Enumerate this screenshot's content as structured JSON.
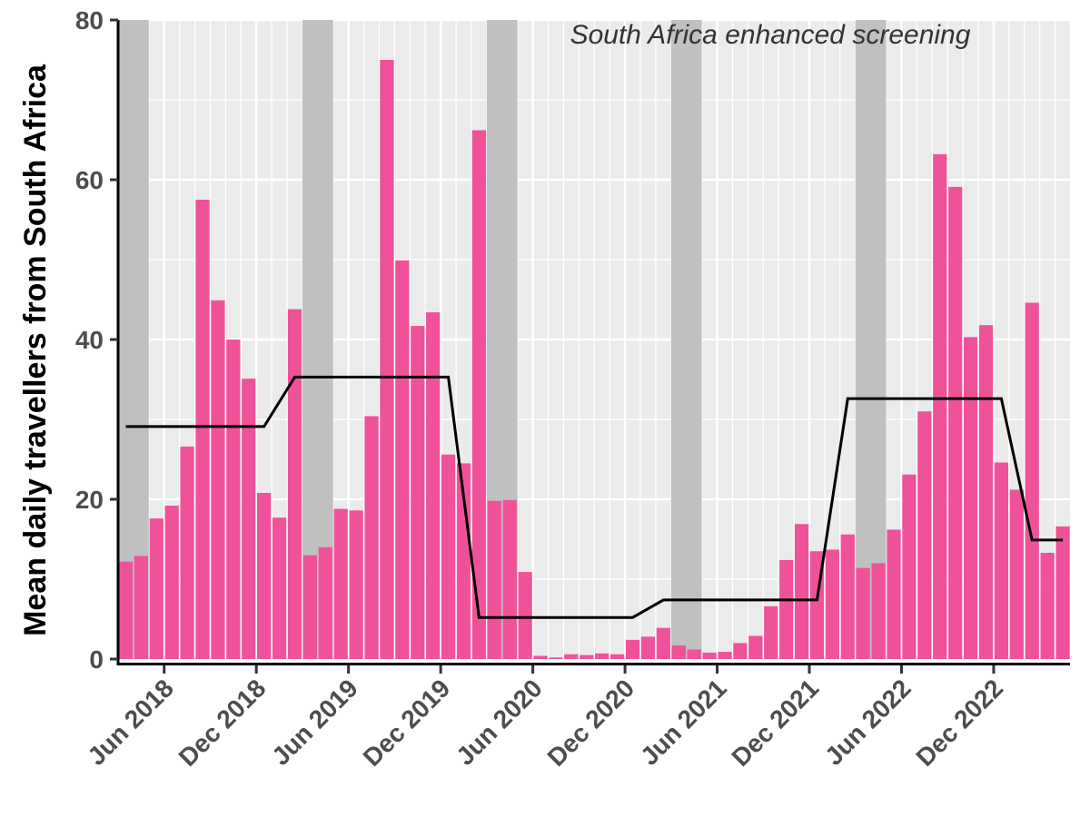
{
  "chart_data": {
    "type": "bar",
    "ylabel": "Mean daily travellers from South Africa",
    "xlabel": "",
    "annotation": "South Africa enhanced screening",
    "ylim": [
      0,
      80
    ],
    "yticks": [
      0,
      20,
      40,
      60,
      80
    ],
    "x_start": "Mar 2018",
    "x_end": "Apr 2023",
    "xticks": [
      "Jun 2018",
      "Dec 2018",
      "Jun 2019",
      "Dec 2019",
      "Jun 2020",
      "Dec 2020",
      "Jun 2021",
      "Dec 2021",
      "Jun 2022",
      "Dec 2022"
    ],
    "categories": [
      "Mar 2018",
      "Apr 2018",
      "May 2018",
      "Jun 2018",
      "Jul 2018",
      "Aug 2018",
      "Sep 2018",
      "Oct 2018",
      "Nov 2018",
      "Dec 2018",
      "Jan 2019",
      "Feb 2019",
      "Mar 2019",
      "Apr 2019",
      "May 2019",
      "Jun 2019",
      "Jul 2019",
      "Aug 2019",
      "Sep 2019",
      "Oct 2019",
      "Nov 2019",
      "Dec 2019",
      "Jan 2020",
      "Feb 2020",
      "Mar 2020",
      "Apr 2020",
      "May 2020",
      "Jun 2020",
      "Jul 2020",
      "Aug 2020",
      "Sep 2020",
      "Oct 2020",
      "Nov 2020",
      "Dec 2020",
      "Jan 2021",
      "Feb 2021",
      "Mar 2021",
      "Apr 2021",
      "May 2021",
      "Jun 2021",
      "Jul 2021",
      "Aug 2021",
      "Sep 2021",
      "Oct 2021",
      "Nov 2021",
      "Dec 2021",
      "Jan 2022",
      "Feb 2022",
      "Mar 2022",
      "Apr 2022",
      "May 2022",
      "Jun 2022",
      "Jul 2022",
      "Aug 2022",
      "Sep 2022",
      "Oct 2022",
      "Nov 2022",
      "Dec 2022",
      "Jan 2023",
      "Feb 2023",
      "Mar 2023",
      "Apr 2023"
    ],
    "values": [
      12.2,
      12.9,
      17.6,
      19.2,
      26.6,
      57.5,
      44.9,
      40.0,
      35.1,
      20.8,
      17.7,
      43.8,
      13.0,
      14.0,
      18.8,
      18.6,
      30.4,
      75.0,
      49.9,
      41.7,
      43.4,
      25.6,
      24.5,
      66.2,
      19.8,
      19.9,
      10.9,
      0.4,
      0.2,
      0.6,
      0.5,
      0.7,
      0.6,
      2.4,
      2.8,
      3.9,
      1.7,
      1.2,
      0.8,
      0.9,
      2.0,
      2.9,
      6.6,
      12.4,
      16.9,
      13.5,
      13.7,
      15.6,
      11.4,
      12.0,
      16.2,
      23.1,
      31.0,
      63.2,
      59.1,
      40.3,
      41.8,
      24.6,
      21.2,
      44.6,
      13.3,
      16.6
    ],
    "screening_periods": [
      [
        "Mar 2018",
        "Apr 2018"
      ],
      [
        "Mar 2019",
        "Apr 2019"
      ],
      [
        "Mar 2020",
        "Apr 2020"
      ],
      [
        "Mar 2021",
        "Apr 2021"
      ],
      [
        "Mar 2022",
        "Apr 2022"
      ]
    ],
    "seasonal_mean": {
      "x": [
        "Mar 2018",
        "Dec 2018",
        "Feb 2019",
        "Dec 2019",
        "Feb 2020",
        "Dec 2020",
        "Feb 2021",
        "Dec 2021",
        "Feb 2022",
        "Dec 2022",
        "Feb 2023",
        "Apr 2023"
      ],
      "y": [
        29.1,
        29.1,
        35.3,
        35.3,
        5.2,
        5.2,
        7.4,
        7.4,
        32.6,
        32.6,
        14.9,
        14.9
      ]
    },
    "colors": {
      "bar": "#f0529a",
      "screening_band": "#c0c0c0",
      "line": "#000000",
      "panel_background": "#ebebeb",
      "gridline": "#ffffff"
    },
    "grid": true,
    "legend": "none"
  }
}
